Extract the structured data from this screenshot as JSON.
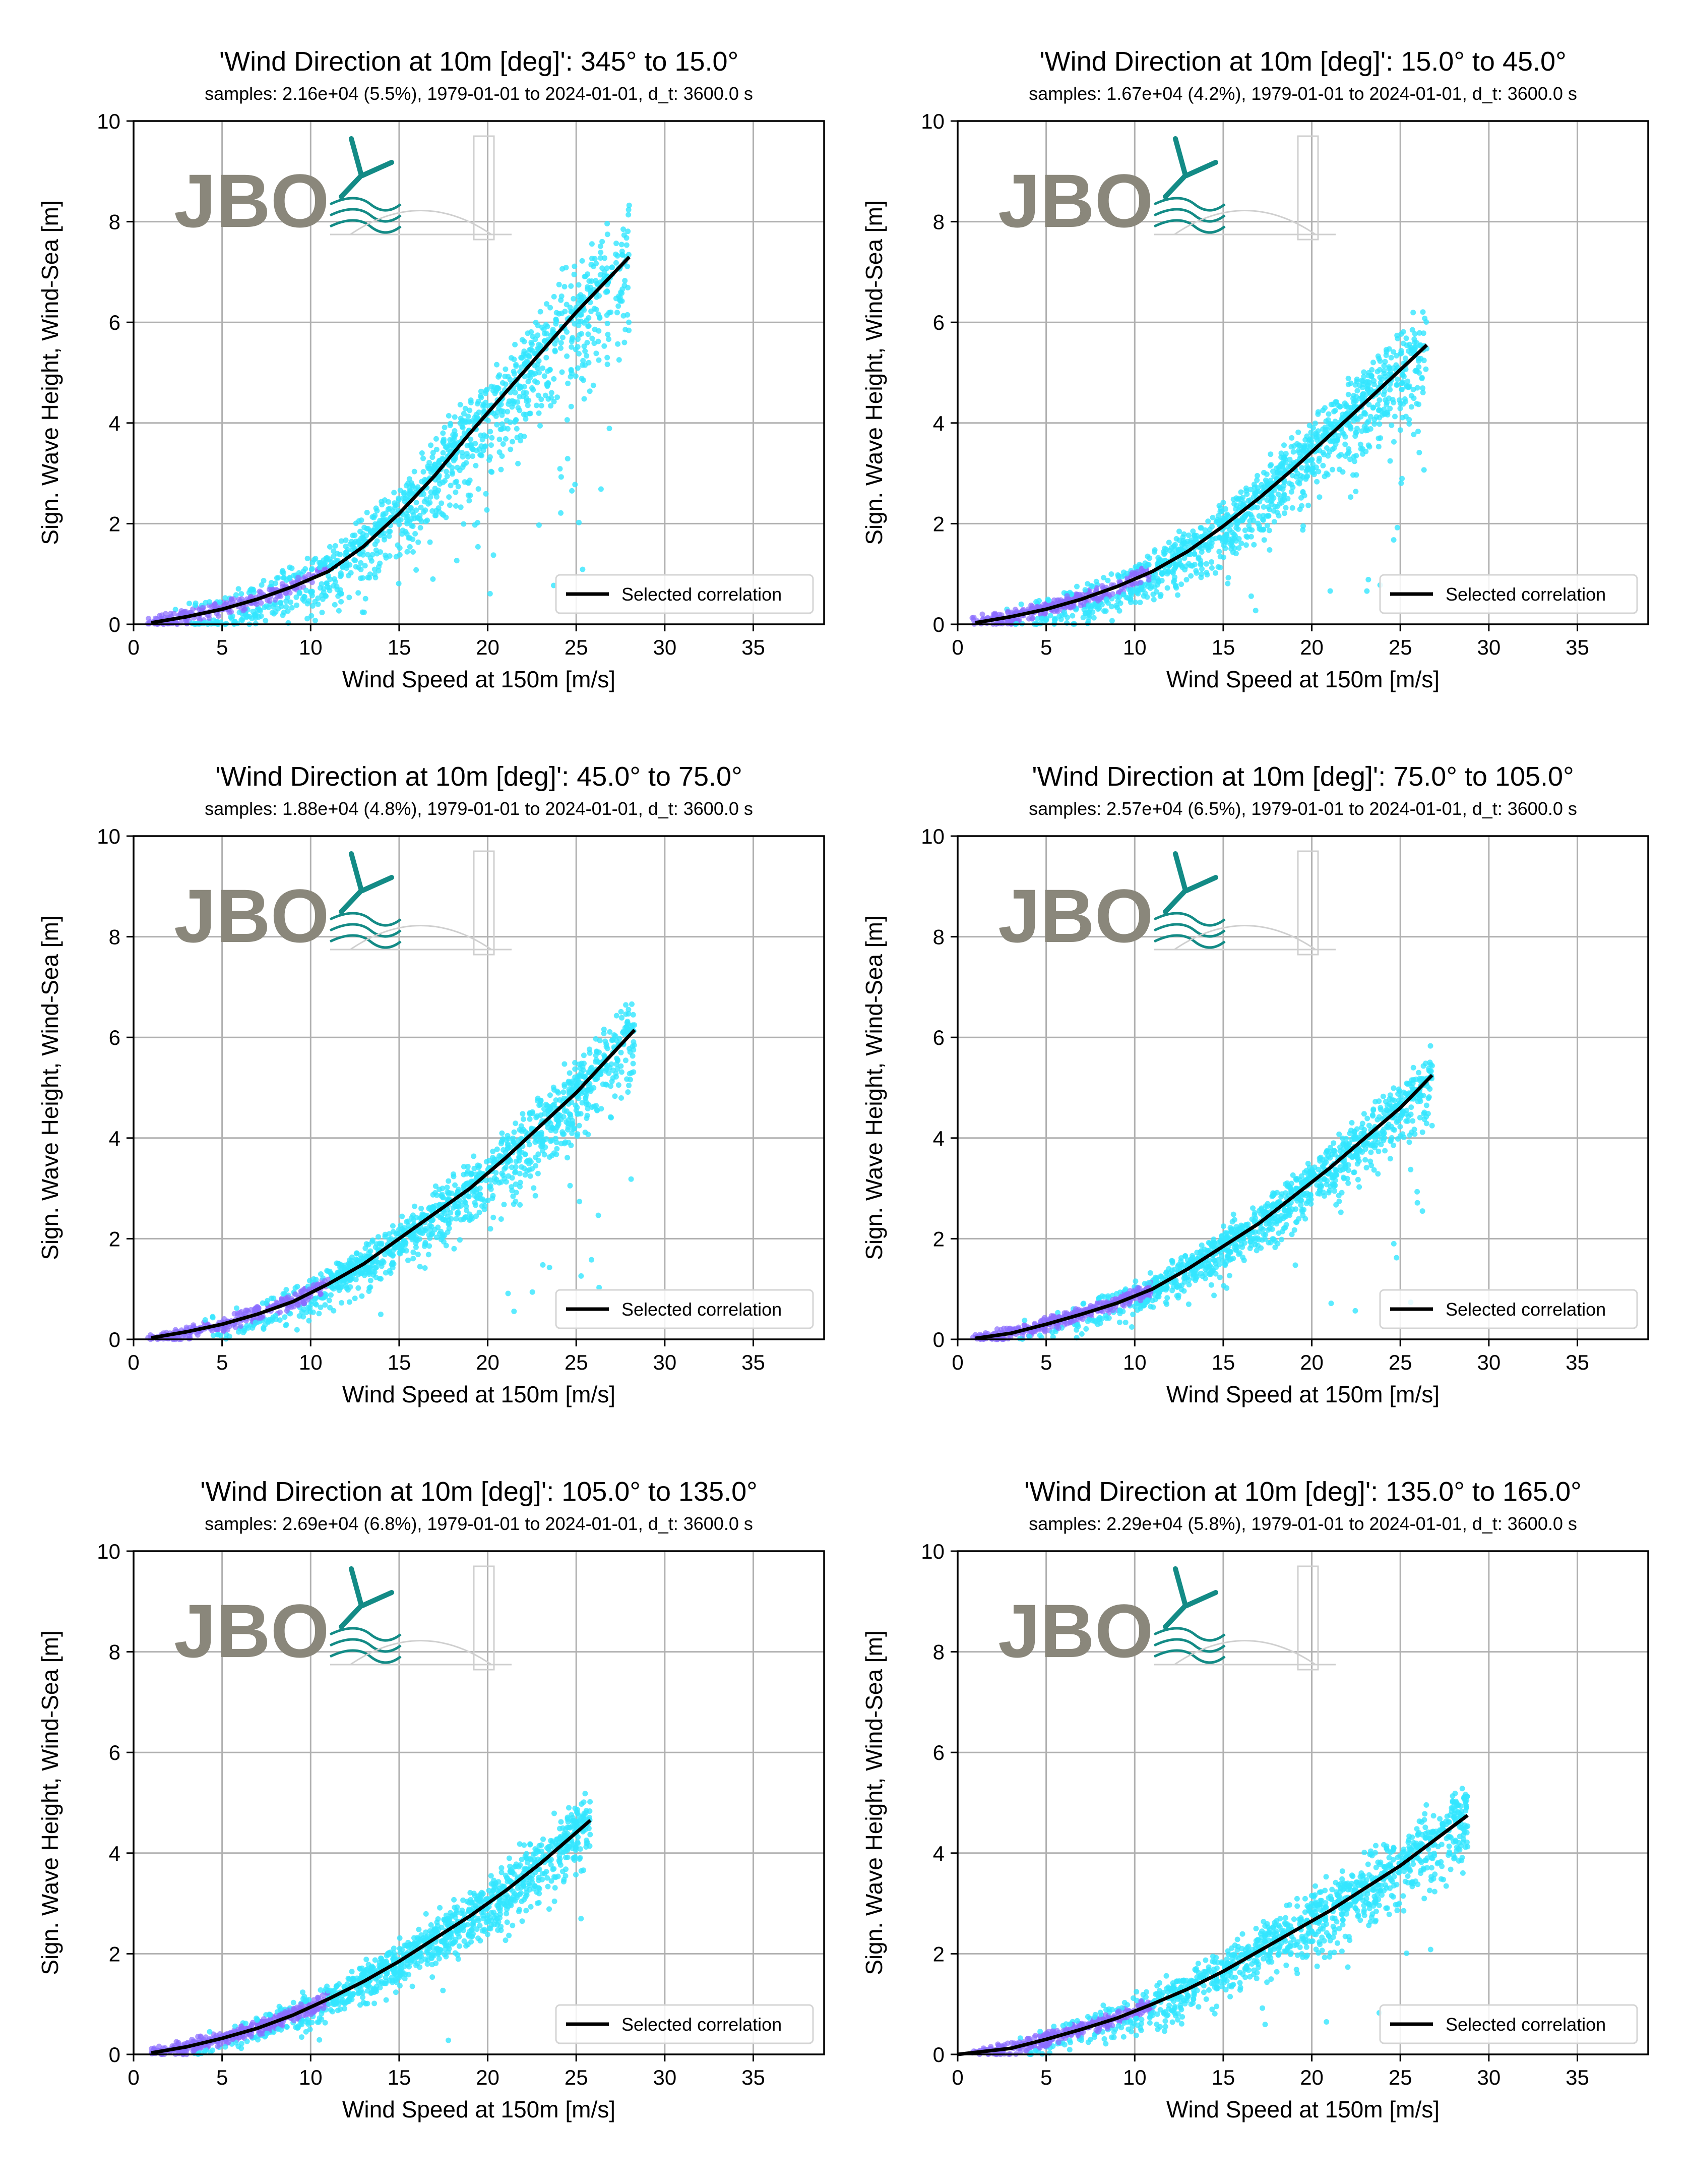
{
  "figure": {
    "colors": {
      "scatter": "#33e6ff",
      "scatter_dense": "#8a6cff",
      "fit_line": "#000000",
      "grid": "#b0b0b0",
      "logo_text": "#8a877b",
      "logo_accent": "#138b86"
    },
    "logo_text": "JBO"
  },
  "chart_data": [
    {
      "type": "scatter",
      "title": "'Wind Direction at 10m [deg]': 345° to 15.0°",
      "subtitle": "samples: 2.16e+04 (5.5%), 1979-01-01 to 2024-01-01, d_t: 3600.0 s",
      "xlabel": "Wind Speed at 150m [m/s]",
      "ylabel": "Sign. Wave Height, Wind-Sea [m]",
      "xlim": [
        0,
        39
      ],
      "ylim": [
        0,
        10
      ],
      "xticks": [
        0,
        5,
        10,
        15,
        20,
        25,
        30,
        35
      ],
      "yticks": [
        0,
        2,
        4,
        6,
        8,
        10
      ],
      "grid": true,
      "legend": {
        "position": "lower-right",
        "entries": [
          "Selected correlation"
        ]
      },
      "series": [
        {
          "name": "Selected correlation",
          "kind": "line",
          "x": [
            1,
            3,
            5,
            7,
            9,
            11,
            13,
            15,
            17,
            19,
            21,
            23,
            25,
            28
          ],
          "y": [
            0.03,
            0.15,
            0.3,
            0.5,
            0.75,
            1.05,
            1.55,
            2.2,
            2.95,
            3.8,
            4.6,
            5.4,
            6.2,
            7.3
          ]
        }
      ],
      "cloud": {
        "xmax": 28,
        "spread_low": 1.6,
        "spread_high": 0.9,
        "outlier_rate": 0.08
      }
    },
    {
      "type": "scatter",
      "title": "'Wind Direction at 10m [deg]': 15.0° to 45.0°",
      "subtitle": "samples: 1.67e+04 (4.2%), 1979-01-01 to 2024-01-01, d_t: 3600.0 s",
      "xlabel": "Wind Speed at 150m [m/s]",
      "ylabel": "Sign. Wave Height, Wind-Sea [m]",
      "xlim": [
        0,
        39
      ],
      "ylim": [
        0,
        10
      ],
      "xticks": [
        0,
        5,
        10,
        15,
        20,
        25,
        30,
        35
      ],
      "yticks": [
        0,
        2,
        4,
        6,
        8,
        10
      ],
      "grid": true,
      "legend": {
        "position": "lower-right",
        "entries": [
          "Selected correlation"
        ]
      },
      "series": [
        {
          "name": "Selected correlation",
          "kind": "line",
          "x": [
            1,
            3,
            5,
            7,
            9,
            11,
            13,
            15,
            17,
            19,
            21,
            23,
            26.5
          ],
          "y": [
            0.03,
            0.15,
            0.3,
            0.5,
            0.75,
            1.05,
            1.45,
            1.95,
            2.5,
            3.1,
            3.75,
            4.4,
            5.55
          ]
        }
      ],
      "cloud": {
        "xmax": 26.5,
        "spread_low": 1.2,
        "spread_high": 0.7,
        "outlier_rate": 0.05
      }
    },
    {
      "type": "scatter",
      "title": "'Wind Direction at 10m [deg]': 45.0° to 75.0°",
      "subtitle": "samples: 1.88e+04 (4.8%), 1979-01-01 to 2024-01-01, d_t: 3600.0 s",
      "xlabel": "Wind Speed at 150m [m/s]",
      "ylabel": "Sign. Wave Height, Wind-Sea [m]",
      "xlim": [
        0,
        39
      ],
      "ylim": [
        0,
        10
      ],
      "xticks": [
        0,
        5,
        10,
        15,
        20,
        25,
        30,
        35
      ],
      "yticks": [
        0,
        2,
        4,
        6,
        8,
        10
      ],
      "grid": true,
      "legend": {
        "position": "lower-right",
        "entries": [
          "Selected correlation"
        ]
      },
      "series": [
        {
          "name": "Selected correlation",
          "kind": "line",
          "x": [
            1,
            3,
            5,
            7,
            9,
            11,
            13,
            15,
            17,
            19,
            21,
            23,
            25,
            28.3
          ],
          "y": [
            0.03,
            0.15,
            0.3,
            0.5,
            0.75,
            1.1,
            1.5,
            2.0,
            2.5,
            3.0,
            3.6,
            4.25,
            4.9,
            6.15
          ]
        }
      ],
      "cloud": {
        "xmax": 28.3,
        "spread_low": 1.0,
        "spread_high": 0.55,
        "outlier_rate": 0.03
      }
    },
    {
      "type": "scatter",
      "title": "'Wind Direction at 10m [deg]': 75.0° to 105.0°",
      "subtitle": "samples: 2.57e+04 (6.5%), 1979-01-01 to 2024-01-01, d_t: 3600.0 s",
      "xlabel": "Wind Speed at 150m [m/s]",
      "ylabel": "Sign. Wave Height, Wind-Sea [m]",
      "xlim": [
        0,
        39
      ],
      "ylim": [
        0,
        10
      ],
      "xticks": [
        0,
        5,
        10,
        15,
        20,
        25,
        30,
        35
      ],
      "yticks": [
        0,
        2,
        4,
        6,
        8,
        10
      ],
      "grid": true,
      "legend": {
        "position": "lower-right",
        "entries": [
          "Selected correlation"
        ]
      },
      "series": [
        {
          "name": "Selected correlation",
          "kind": "line",
          "x": [
            1,
            3,
            5,
            7,
            9,
            11,
            13,
            15,
            17,
            19,
            21,
            23,
            25,
            26.8
          ],
          "y": [
            0.02,
            0.12,
            0.3,
            0.5,
            0.72,
            1.0,
            1.4,
            1.85,
            2.3,
            2.85,
            3.4,
            4.0,
            4.6,
            5.25
          ]
        }
      ],
      "cloud": {
        "xmax": 26.8,
        "spread_low": 0.8,
        "spread_high": 0.5,
        "outlier_rate": 0.02
      }
    },
    {
      "type": "scatter",
      "title": "'Wind Direction at 10m [deg]': 105.0° to 135.0°",
      "subtitle": "samples: 2.69e+04 (6.8%), 1979-01-01 to 2024-01-01, d_t: 3600.0 s",
      "xlabel": "Wind Speed at 150m [m/s]",
      "ylabel": "Sign. Wave Height, Wind-Sea [m]",
      "xlim": [
        0,
        39
      ],
      "ylim": [
        0,
        10
      ],
      "xticks": [
        0,
        5,
        10,
        15,
        20,
        25,
        30,
        35
      ],
      "yticks": [
        0,
        2,
        4,
        6,
        8,
        10
      ],
      "grid": true,
      "legend": {
        "position": "lower-right",
        "entries": [
          "Selected correlation"
        ]
      },
      "series": [
        {
          "name": "Selected correlation",
          "kind": "line",
          "x": [
            1,
            3,
            5,
            7,
            9,
            11,
            13,
            15,
            17,
            19,
            21,
            23,
            25.8
          ],
          "y": [
            0.03,
            0.15,
            0.32,
            0.52,
            0.78,
            1.1,
            1.45,
            1.85,
            2.3,
            2.75,
            3.25,
            3.8,
            4.65
          ]
        }
      ],
      "cloud": {
        "xmax": 25.8,
        "spread_low": 0.8,
        "spread_high": 0.55,
        "outlier_rate": 0.02
      }
    },
    {
      "type": "scatter",
      "title": "'Wind Direction at 10m [deg]': 135.0° to 165.0°",
      "subtitle": "samples: 2.29e+04 (5.8%), 1979-01-01 to 2024-01-01, d_t: 3600.0 s",
      "xlabel": "Wind Speed at 150m [m/s]",
      "ylabel": "Sign. Wave Height, Wind-Sea [m]",
      "xlim": [
        0,
        39
      ],
      "ylim": [
        0,
        10
      ],
      "xticks": [
        0,
        5,
        10,
        15,
        20,
        25,
        30,
        35
      ],
      "yticks": [
        0,
        2,
        4,
        6,
        8,
        10
      ],
      "grid": true,
      "legend": {
        "position": "lower-right",
        "entries": [
          "Selected correlation"
        ]
      },
      "series": [
        {
          "name": "Selected correlation",
          "kind": "line",
          "x": [
            0,
            3,
            5,
            7,
            9,
            11,
            13,
            15,
            17,
            19,
            21,
            23,
            25,
            28.8
          ],
          "y": [
            0.0,
            0.12,
            0.3,
            0.5,
            0.72,
            1.0,
            1.3,
            1.65,
            2.05,
            2.45,
            2.85,
            3.3,
            3.75,
            4.75
          ]
        }
      ],
      "cloud": {
        "xmax": 28.8,
        "spread_low": 0.9,
        "spread_high": 0.6,
        "outlier_rate": 0.02
      }
    }
  ]
}
